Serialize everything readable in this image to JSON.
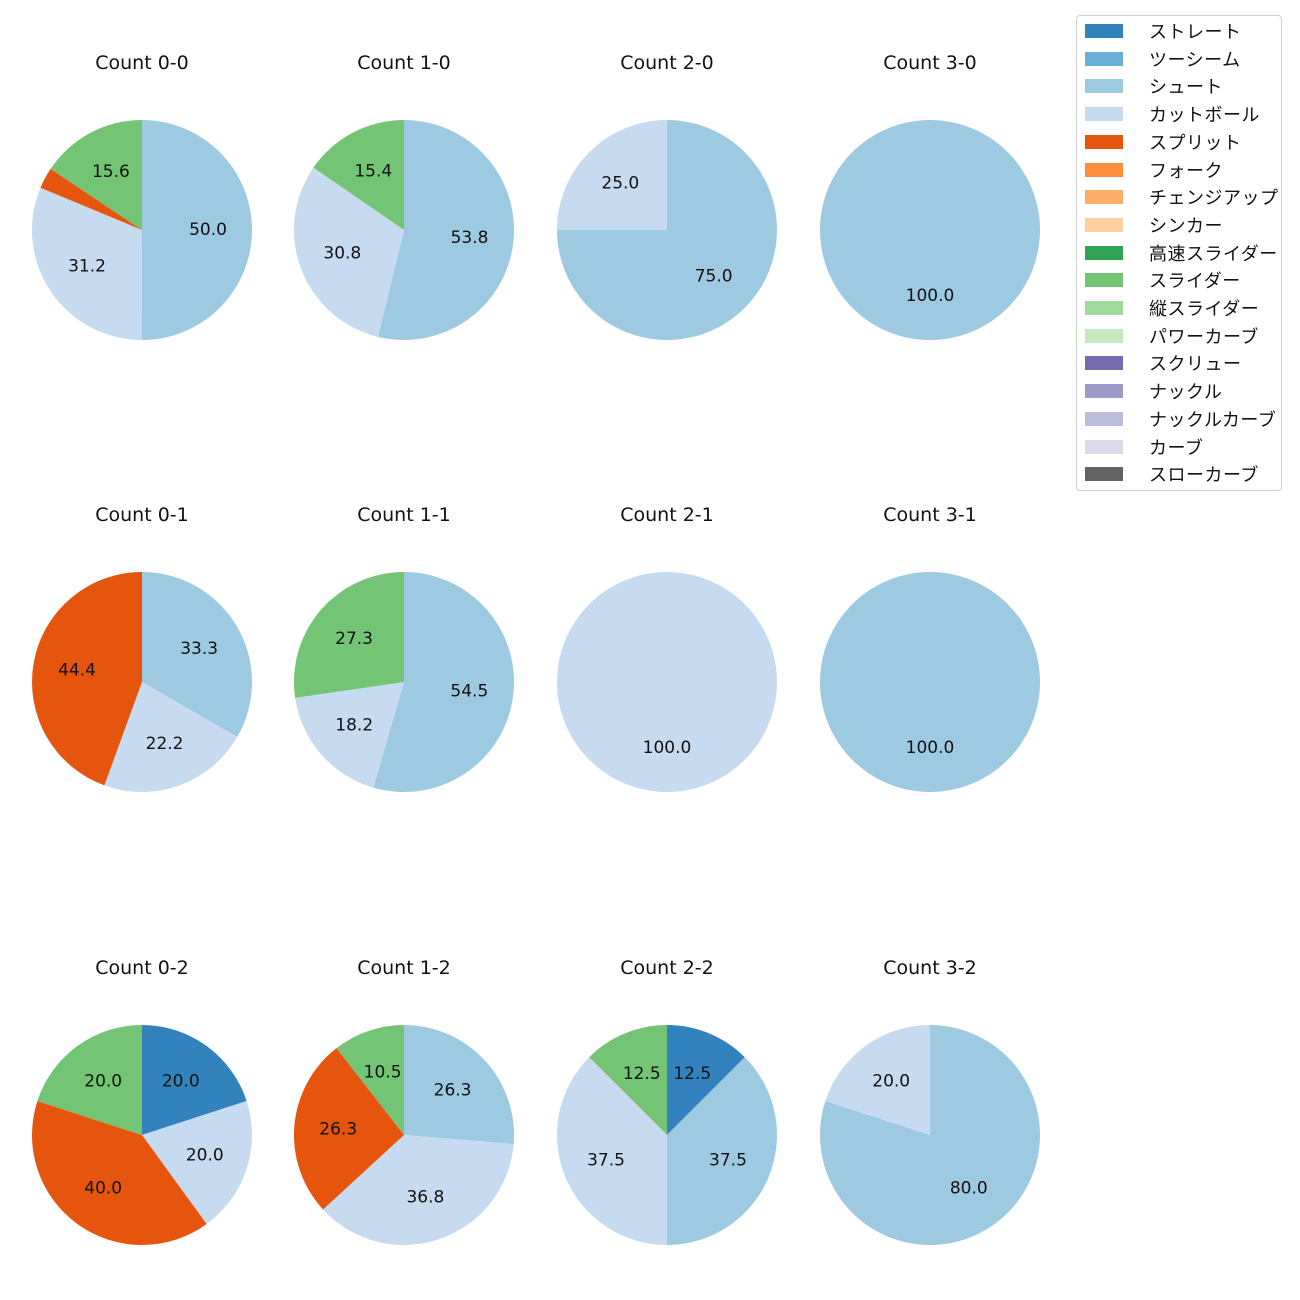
{
  "chart_data": {
    "type": "pie",
    "legend": [
      {
        "name": "ストレート",
        "color": "#3182bd"
      },
      {
        "name": "ツーシーム",
        "color": "#6baed6"
      },
      {
        "name": "シュート",
        "color": "#9ecae1"
      },
      {
        "name": "カットボール",
        "color": "#c6dbef"
      },
      {
        "name": "スプリット",
        "color": "#e6550d"
      },
      {
        "name": "フォーク",
        "color": "#fd8d3c"
      },
      {
        "name": "チェンジアップ",
        "color": "#fdae6b"
      },
      {
        "name": "シンカー",
        "color": "#fdd0a2"
      },
      {
        "name": "高速スライダー",
        "color": "#31a354"
      },
      {
        "name": "スライダー",
        "color": "#74c476"
      },
      {
        "name": "縦スライダー",
        "color": "#a1d99b"
      },
      {
        "name": "パワーカーブ",
        "color": "#c7e9c0"
      },
      {
        "name": "スクリュー",
        "color": "#756bb1"
      },
      {
        "name": "ナックル",
        "color": "#9e9ac8"
      },
      {
        "name": "ナックルカーブ",
        "color": "#bcbddc"
      },
      {
        "name": "カーブ",
        "color": "#dadaeb"
      },
      {
        "name": "スローカーブ",
        "color": "#636363"
      }
    ],
    "legend_position": "top-right",
    "pies": [
      {
        "title": "Count 0-0",
        "slices": [
          {
            "pitch": "シュート",
            "value": 50.0,
            "label": "50.0"
          },
          {
            "pitch": "カットボール",
            "value": 31.2,
            "label": "31.2"
          },
          {
            "pitch": "スプリット",
            "value": 3.1,
            "label": ""
          },
          {
            "pitch": "スライダー",
            "value": 15.6,
            "label": "15.6"
          }
        ]
      },
      {
        "title": "Count 1-0",
        "slices": [
          {
            "pitch": "シュート",
            "value": 53.8,
            "label": "53.8"
          },
          {
            "pitch": "カットボール",
            "value": 30.8,
            "label": "30.8"
          },
          {
            "pitch": "スライダー",
            "value": 15.4,
            "label": "15.4"
          }
        ]
      },
      {
        "title": "Count 2-0",
        "slices": [
          {
            "pitch": "シュート",
            "value": 75.0,
            "label": "75.0"
          },
          {
            "pitch": "カットボール",
            "value": 25.0,
            "label": "25.0"
          }
        ]
      },
      {
        "title": "Count 3-0",
        "slices": [
          {
            "pitch": "シュート",
            "value": 100.0,
            "label": "100.0"
          }
        ]
      },
      {
        "title": "Count 0-1",
        "slices": [
          {
            "pitch": "シュート",
            "value": 33.3,
            "label": "33.3"
          },
          {
            "pitch": "カットボール",
            "value": 22.2,
            "label": "22.2"
          },
          {
            "pitch": "スプリット",
            "value": 44.4,
            "label": "44.4"
          }
        ]
      },
      {
        "title": "Count 1-1",
        "slices": [
          {
            "pitch": "シュート",
            "value": 54.5,
            "label": "54.5"
          },
          {
            "pitch": "カットボール",
            "value": 18.2,
            "label": "18.2"
          },
          {
            "pitch": "スライダー",
            "value": 27.3,
            "label": "27.3"
          }
        ]
      },
      {
        "title": "Count 2-1",
        "slices": [
          {
            "pitch": "カットボール",
            "value": 100.0,
            "label": "100.0"
          }
        ]
      },
      {
        "title": "Count 3-1",
        "slices": [
          {
            "pitch": "シュート",
            "value": 100.0,
            "label": "100.0"
          }
        ]
      },
      {
        "title": "Count 0-2",
        "slices": [
          {
            "pitch": "ストレート",
            "value": 20.0,
            "label": "20.0"
          },
          {
            "pitch": "カットボール",
            "value": 20.0,
            "label": "20.0"
          },
          {
            "pitch": "スプリット",
            "value": 40.0,
            "label": "40.0"
          },
          {
            "pitch": "スライダー",
            "value": 20.0,
            "label": "20.0"
          }
        ]
      },
      {
        "title": "Count 1-2",
        "slices": [
          {
            "pitch": "シュート",
            "value": 26.3,
            "label": "26.3"
          },
          {
            "pitch": "カットボール",
            "value": 36.8,
            "label": "36.8"
          },
          {
            "pitch": "スプリット",
            "value": 26.3,
            "label": "26.3"
          },
          {
            "pitch": "スライダー",
            "value": 10.5,
            "label": "10.5"
          }
        ]
      },
      {
        "title": "Count 2-2",
        "slices": [
          {
            "pitch": "ストレート",
            "value": 12.5,
            "label": "12.5"
          },
          {
            "pitch": "シュート",
            "value": 37.5,
            "label": "37.5"
          },
          {
            "pitch": "カットボール",
            "value": 37.5,
            "label": "37.5"
          },
          {
            "pitch": "スライダー",
            "value": 12.5,
            "label": "12.5"
          }
        ]
      },
      {
        "title": "Count 3-2",
        "slices": [
          {
            "pitch": "シュート",
            "value": 80.0,
            "label": "80.0"
          },
          {
            "pitch": "カットボール",
            "value": 20.0,
            "label": "20.0"
          }
        ]
      }
    ]
  }
}
